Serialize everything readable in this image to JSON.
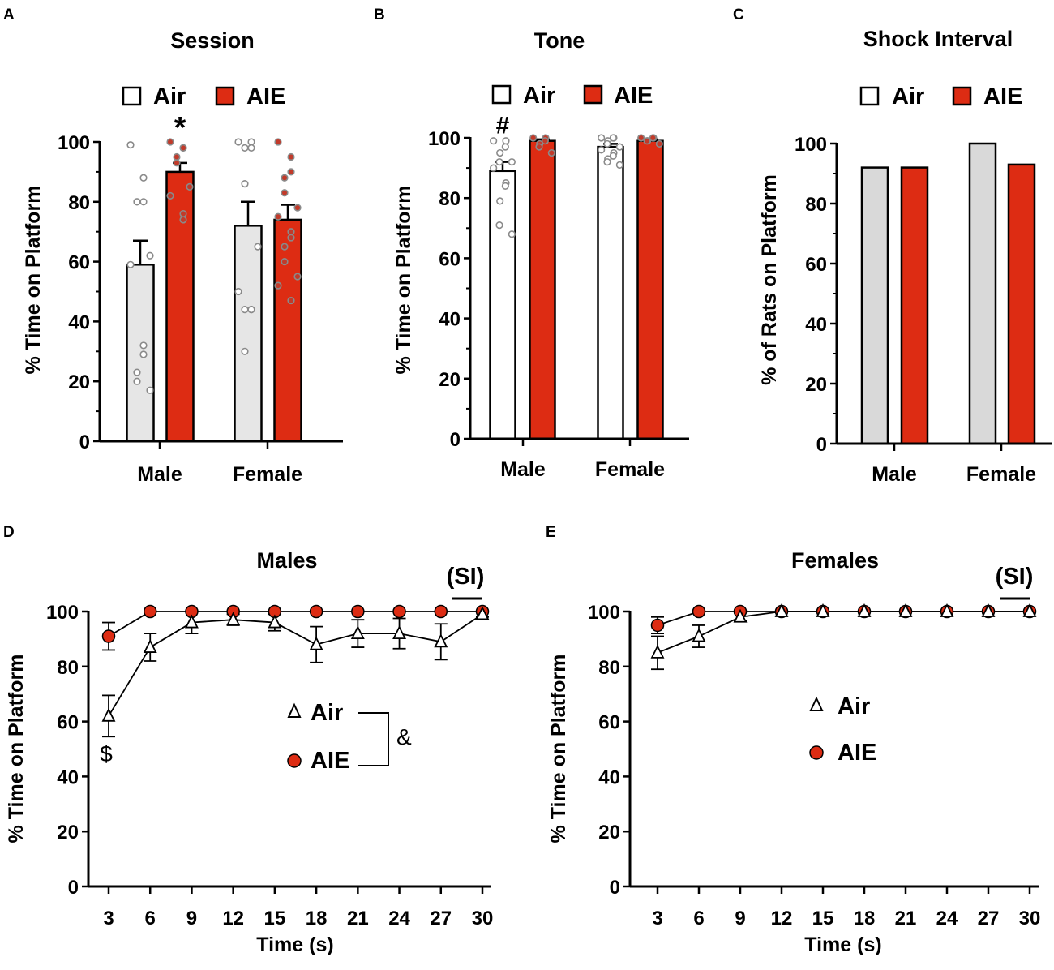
{
  "colors": {
    "air_fill_a": "#e6e6e6",
    "air_fill_b": "#ffffff",
    "air_fill_c": "#d9d9d9",
    "aie_fill": "#dd2c13",
    "dot_grey": "#8a8a8a",
    "dot_red": "#c23a2a",
    "axis": "#000000"
  },
  "chart_data": [
    {
      "panel": "A",
      "type": "bar",
      "title": "Session",
      "ylabel": "% Time on Platform",
      "ylim": [
        0,
        100
      ],
      "yticks": [
        0,
        20,
        40,
        60,
        80,
        100
      ],
      "categories": [
        "Male",
        "Female"
      ],
      "legend": [
        "Air",
        "AIE"
      ],
      "series": [
        {
          "name": "Air",
          "values": [
            59,
            72
          ],
          "sem": [
            8,
            8
          ],
          "points": [
            [
              99,
              88,
              80,
              80,
              80,
              62,
              59,
              32,
              29,
              23,
              20,
              17
            ],
            [
              100,
              100,
              98,
              98,
              86,
              65,
              50,
              44,
              44,
              44,
              30
            ]
          ]
        },
        {
          "name": "AIE",
          "values": [
            90,
            74
          ],
          "sem": [
            3,
            5
          ],
          "points": [
            [
              100,
              98,
              98,
              95,
              93,
              85,
              82,
              76,
              74
            ],
            [
              100,
              95,
              90,
              88,
              83,
              78,
              75,
              70,
              68,
              65,
              60,
              55,
              52,
              47
            ]
          ]
        }
      ],
      "annotations": [
        {
          "text": "*",
          "category": "Male",
          "series": "AIE"
        }
      ]
    },
    {
      "panel": "B",
      "type": "bar",
      "title": "Tone",
      "ylabel": "% Time on Platform",
      "ylim": [
        0,
        100
      ],
      "yticks": [
        0,
        20,
        40,
        60,
        80,
        100
      ],
      "categories": [
        "Male",
        "Female"
      ],
      "legend": [
        "Air",
        "AIE"
      ],
      "series": [
        {
          "name": "Air",
          "values": [
            89,
            97
          ],
          "sem": [
            3,
            1
          ],
          "points": [
            [
              99,
              99,
              97,
              95,
              92,
              92,
              90,
              85,
              84,
              79,
              71,
              68
            ],
            [
              100,
              100,
              100,
              99,
              98,
              97,
              96,
              95,
              94,
              93,
              92,
              91
            ]
          ]
        },
        {
          "name": "AIE",
          "values": [
            99,
            99
          ],
          "sem": [
            0.5,
            0.5
          ],
          "points": [
            [
              100,
              100,
              99,
              98,
              97,
              95
            ],
            [
              100,
              100,
              100,
              99,
              99,
              98
            ]
          ]
        }
      ],
      "annotations": [
        {
          "text": "#",
          "category": "Male",
          "series": "Air"
        }
      ]
    },
    {
      "panel": "C",
      "type": "bar",
      "title": "Shock Interval",
      "ylabel": "% of Rats on Platform",
      "ylim": [
        0,
        100
      ],
      "yticks": [
        0,
        20,
        40,
        60,
        80,
        100
      ],
      "categories": [
        "Male",
        "Female"
      ],
      "legend": [
        "Air",
        "AIE"
      ],
      "series": [
        {
          "name": "Air",
          "values": [
            92,
            100
          ]
        },
        {
          "name": "AIE",
          "values": [
            92,
            93
          ]
        }
      ]
    },
    {
      "panel": "D",
      "type": "line",
      "title": "Males",
      "xlabel": "Time (s)",
      "ylabel": "% Time on Platform",
      "x": [
        3,
        6,
        9,
        12,
        15,
        18,
        21,
        24,
        27,
        30
      ],
      "ylim": [
        0,
        100
      ],
      "yticks": [
        0,
        20,
        40,
        60,
        80,
        100
      ],
      "series": [
        {
          "name": "Air",
          "marker": "triangle",
          "values": [
            62,
            87,
            96,
            97,
            96,
            88,
            92,
            92,
            89,
            99
          ],
          "sem": [
            7.5,
            5,
            4,
            2,
            3,
            6.5,
            5,
            5.5,
            6.5,
            1
          ]
        },
        {
          "name": "AIE",
          "marker": "circle",
          "values": [
            91,
            100,
            100,
            100,
            100,
            100,
            100,
            100,
            100,
            100
          ],
          "sem": [
            5,
            0,
            0,
            0,
            0,
            0,
            0,
            0,
            0,
            0
          ]
        }
      ],
      "si_label": "(SI)",
      "annotations": [
        {
          "text": "$",
          "x": 3
        },
        {
          "text": "&",
          "target": "legend"
        }
      ]
    },
    {
      "panel": "E",
      "type": "line",
      "title": "Females",
      "xlabel": "Time (s)",
      "ylabel": "% Time on Platform",
      "x": [
        3,
        6,
        9,
        12,
        15,
        18,
        21,
        24,
        27,
        30
      ],
      "ylim": [
        0,
        100
      ],
      "yticks": [
        0,
        20,
        40,
        60,
        80,
        100
      ],
      "series": [
        {
          "name": "Air",
          "marker": "triangle",
          "values": [
            85,
            91,
            98,
            100,
            100,
            100,
            100,
            100,
            100,
            100
          ],
          "sem": [
            6,
            4,
            1.5,
            0,
            0,
            0,
            0,
            0,
            0,
            0
          ]
        },
        {
          "name": "AIE",
          "marker": "circle",
          "values": [
            95,
            100,
            100,
            100,
            100,
            100,
            100,
            100,
            100,
            100
          ],
          "sem": [
            3,
            0,
            0,
            0,
            0,
            0,
            0,
            0,
            0,
            0
          ]
        }
      ],
      "si_label": "(SI)"
    }
  ]
}
